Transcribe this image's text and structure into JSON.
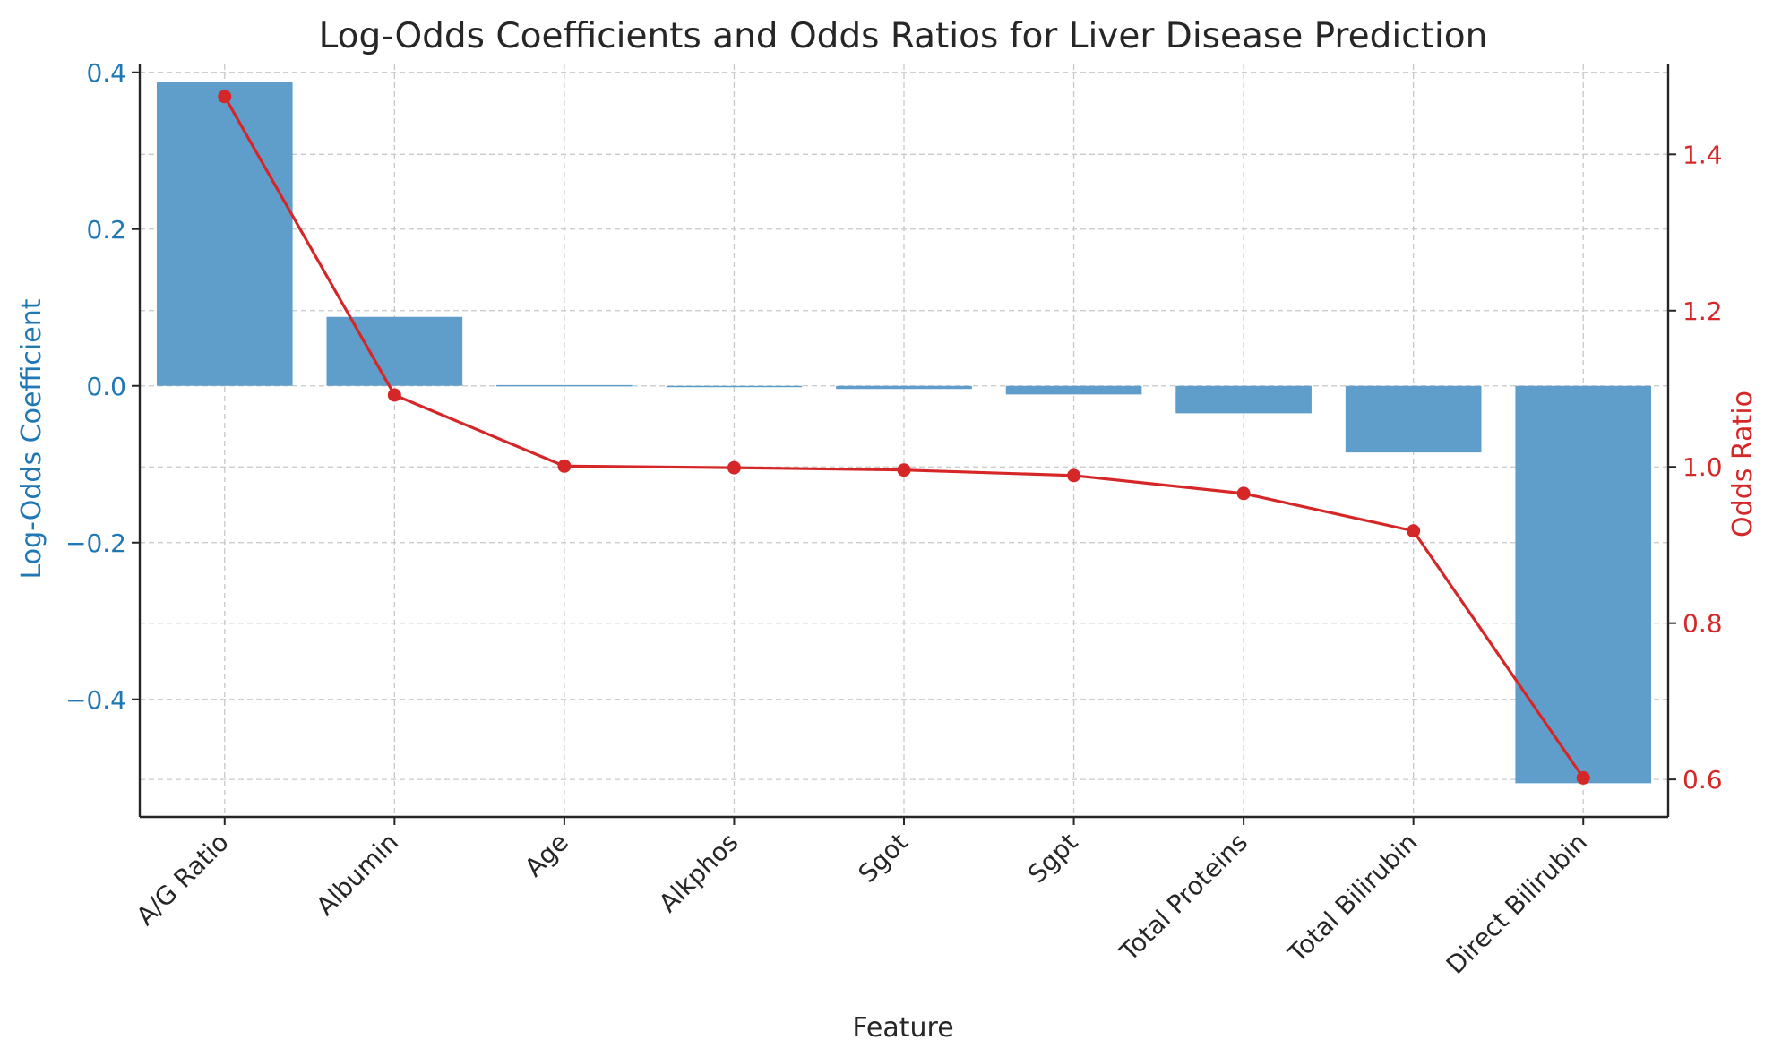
{
  "chart_data": {
    "type": "bar",
    "title": "Log-Odds Coefficients and Odds Ratios for Liver Disease Prediction",
    "xlabel": "Feature",
    "categories": [
      "A/G Ratio",
      "Albumin",
      "Age",
      "Alkphos",
      "Sgot",
      "Sgpt",
      "Total Proteins",
      "Total Bilirubin",
      "Direct Bilirubin"
    ],
    "series": [
      {
        "name": "Log-Odds Coefficient",
        "type": "bar",
        "axis": "left",
        "color": "#5f9ecb",
        "values": [
          0.388,
          0.088,
          0.001,
          -0.001,
          -0.004,
          -0.011,
          -0.035,
          -0.085,
          -0.507
        ]
      },
      {
        "name": "Odds Ratio",
        "type": "line",
        "axis": "right",
        "color": "#d62728",
        "values": [
          1.474,
          1.092,
          1.001,
          0.999,
          0.996,
          0.989,
          0.966,
          0.918,
          0.602
        ]
      }
    ],
    "y_left": {
      "label": "Log-Odds Coefficient",
      "color": "#1f77b4",
      "range": [
        -0.55,
        0.41
      ],
      "ticks": [
        0.4,
        0.2,
        0.0,
        -0.2,
        -0.4
      ],
      "tick_labels": [
        "0.4",
        "0.2",
        "0.0",
        "−0.2",
        "−0.4"
      ]
    },
    "y_right": {
      "label": "Odds Ratio",
      "color": "#d62728",
      "range": [
        0.552,
        1.515
      ],
      "ticks": [
        1.4,
        1.2,
        1.0,
        0.8,
        0.6
      ],
      "tick_labels": [
        "1.4",
        "1.2",
        "1.0",
        "0.8",
        "0.6"
      ]
    },
    "grid": true,
    "legend": "none"
  }
}
